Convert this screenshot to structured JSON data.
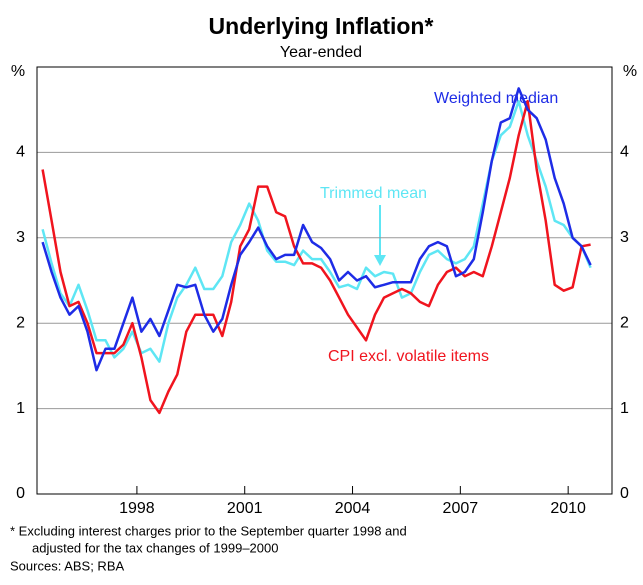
{
  "chart_data": {
    "type": "line",
    "title": "Underlying Inflation*",
    "subtitle": "Year-ended",
    "y_unit": "%",
    "x": [
      1995.375,
      1995.625,
      1995.875,
      1996.125,
      1996.375,
      1996.625,
      1996.875,
      1997.125,
      1997.375,
      1997.625,
      1997.875,
      1998.125,
      1998.375,
      1998.625,
      1998.875,
      1999.125,
      1999.375,
      1999.625,
      1999.875,
      2000.125,
      2000.375,
      2000.625,
      2000.875,
      2001.125,
      2001.375,
      2001.625,
      2001.875,
      2002.125,
      2002.375,
      2002.625,
      2002.875,
      2003.125,
      2003.375,
      2003.625,
      2003.875,
      2004.125,
      2004.375,
      2004.625,
      2004.875,
      2005.125,
      2005.375,
      2005.625,
      2005.875,
      2006.125,
      2006.375,
      2006.625,
      2006.875,
      2007.125,
      2007.375,
      2007.625,
      2007.875,
      2008.125,
      2008.375,
      2008.625,
      2008.875,
      2009.125,
      2009.375,
      2009.625,
      2009.875,
      2010.125,
      2010.375,
      2010.625
    ],
    "series": [
      {
        "name": "Trimmed mean",
        "color": "#5ee6f4",
        "values": [
          3.1,
          2.7,
          2.35,
          2.2,
          2.45,
          2.15,
          1.8,
          1.8,
          1.6,
          1.7,
          1.9,
          1.65,
          1.7,
          1.55,
          2.0,
          2.3,
          2.45,
          2.65,
          2.4,
          2.4,
          2.55,
          2.95,
          3.15,
          3.4,
          3.2,
          2.85,
          2.72,
          2.72,
          2.68,
          2.85,
          2.75,
          2.75,
          2.6,
          2.42,
          2.45,
          2.4,
          2.65,
          2.55,
          2.6,
          2.58,
          2.3,
          2.35,
          2.6,
          2.8,
          2.85,
          2.75,
          2.7,
          2.75,
          2.9,
          3.4,
          3.9,
          4.2,
          4.3,
          4.6,
          4.2,
          3.9,
          3.6,
          3.2,
          3.15,
          3.0,
          2.9,
          2.65
        ]
      },
      {
        "name": "CPI excl. volatile items",
        "color": "#f0141e",
        "values": [
          3.8,
          3.2,
          2.6,
          2.2,
          2.25,
          2.0,
          1.65,
          1.65,
          1.65,
          1.75,
          2.0,
          1.6,
          1.1,
          0.95,
          1.2,
          1.4,
          1.9,
          2.1,
          2.1,
          2.1,
          1.85,
          2.25,
          2.9,
          3.1,
          3.6,
          3.6,
          3.3,
          3.25,
          2.9,
          2.7,
          2.7,
          2.65,
          2.5,
          2.3,
          2.1,
          1.95,
          1.8,
          2.1,
          2.3,
          2.35,
          2.4,
          2.35,
          2.25,
          2.2,
          2.45,
          2.6,
          2.65,
          2.55,
          2.6,
          2.55,
          2.9,
          3.3,
          3.7,
          4.2,
          4.6,
          3.8,
          3.2,
          2.45,
          2.38,
          2.42,
          2.9,
          2.92
        ]
      },
      {
        "name": "Weighted median",
        "color": "#1e2ce6",
        "values": [
          2.95,
          2.6,
          2.3,
          2.1,
          2.2,
          1.9,
          1.45,
          1.7,
          1.7,
          2.0,
          2.3,
          1.9,
          2.05,
          1.85,
          2.15,
          2.45,
          2.42,
          2.45,
          2.1,
          1.9,
          2.05,
          2.45,
          2.8,
          2.95,
          3.12,
          2.9,
          2.75,
          2.8,
          2.8,
          3.15,
          2.95,
          2.88,
          2.75,
          2.5,
          2.6,
          2.5,
          2.55,
          2.42,
          2.45,
          2.48,
          2.48,
          2.48,
          2.75,
          2.9,
          2.95,
          2.9,
          2.55,
          2.6,
          2.75,
          3.3,
          3.9,
          4.35,
          4.4,
          4.75,
          4.5,
          4.4,
          4.15,
          3.7,
          3.4,
          3.0,
          2.9,
          2.68
        ]
      }
    ],
    "xlim": [
      1995.22,
      2011.22
    ],
    "xticks": [
      1998,
      2001,
      2004,
      2007,
      2010
    ],
    "ylim": [
      0,
      5
    ],
    "yticks": [
      0,
      1,
      2,
      3,
      4
    ],
    "grid": true,
    "footnote": [
      "*   Excluding interest charges prior to the September quarter 1998 and",
      "adjusted for the tax changes of 1999–2000",
      "Sources: ABS; RBA"
    ]
  }
}
